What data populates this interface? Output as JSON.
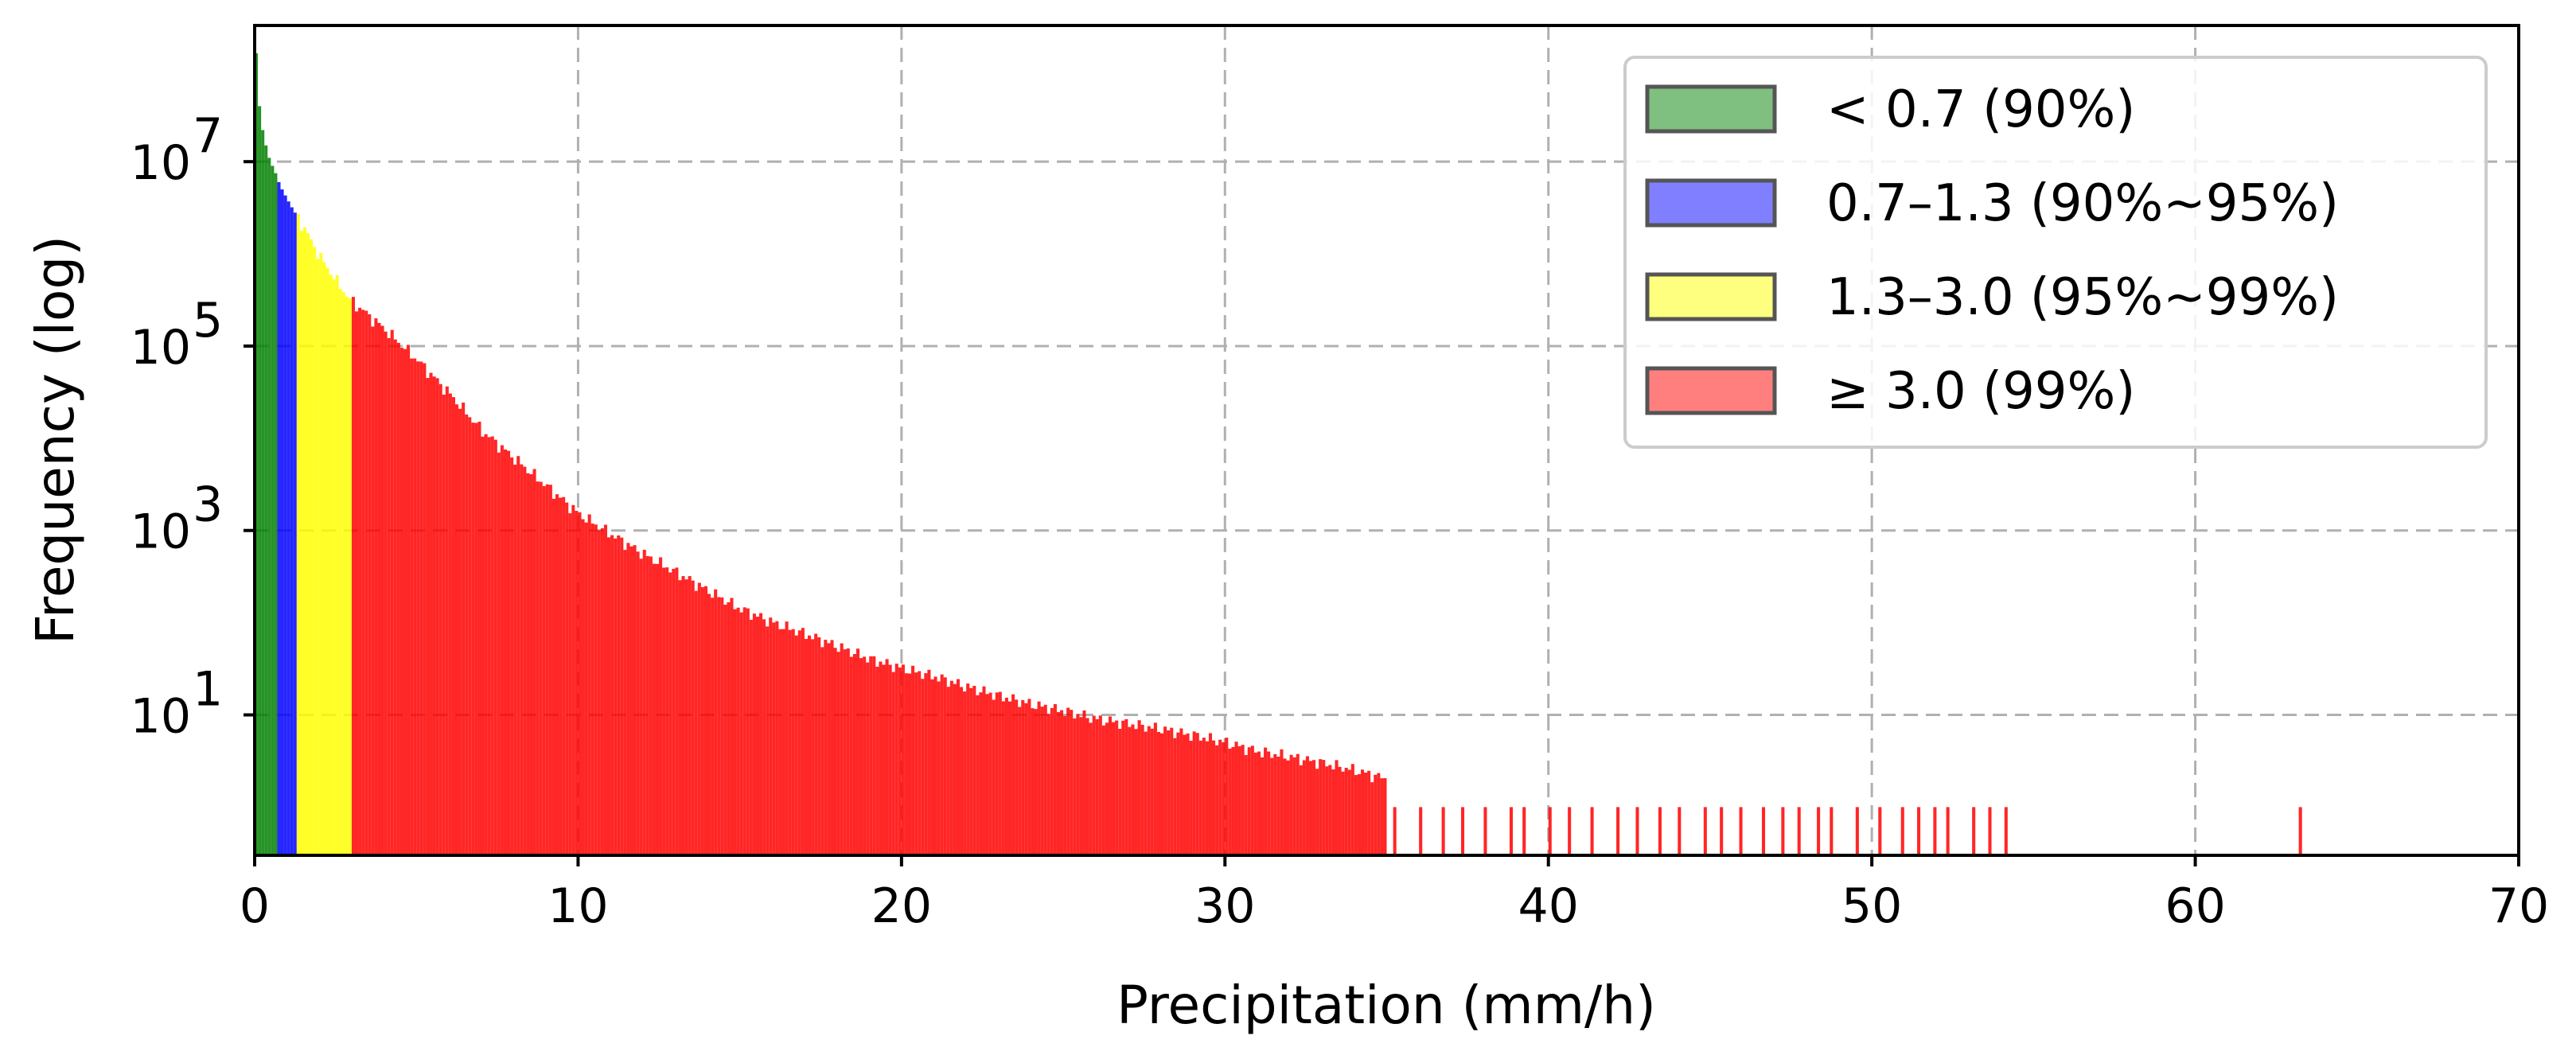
{
  "chart_data": {
    "type": "bar",
    "xlabel": "Precipitation (mm/h)",
    "ylabel": "Frequency (log)",
    "xlim": [
      0,
      70
    ],
    "ylim": [
      0.3,
      300000000
    ],
    "yscale": "log",
    "grid": true,
    "legend_position": "top-right",
    "x_ticks": [
      {
        "value": 0,
        "label": "0"
      },
      {
        "value": 10,
        "label": "10"
      },
      {
        "value": 20,
        "label": "20"
      },
      {
        "value": 30,
        "label": "30"
      },
      {
        "value": 40,
        "label": "40"
      },
      {
        "value": 50,
        "label": "50"
      },
      {
        "value": 60,
        "label": "60"
      },
      {
        "value": 70,
        "label": "70"
      }
    ],
    "y_ticks": [
      {
        "value": 10,
        "base": "10",
        "exp": "1"
      },
      {
        "value": 1000,
        "base": "10",
        "exp": "3"
      },
      {
        "value": 100000,
        "base": "10",
        "exp": "5"
      },
      {
        "value": 10000000,
        "base": "10",
        "exp": "7"
      }
    ],
    "bin_width": 0.1,
    "series": [
      {
        "name": "< 0.7 (90%)",
        "color": "#008000",
        "range": [
          0,
          0.7
        ],
        "x": [
          0.0,
          0.1,
          0.2,
          0.3,
          0.4,
          0.5,
          0.6
        ],
        "values": [
          150000000,
          40000000,
          22000000,
          15000000,
          11000000,
          9000000,
          7500000
        ]
      },
      {
        "name": "0.7–1.3 (90%~95%)",
        "color": "#0000ff",
        "range": [
          0.7,
          1.3
        ],
        "x": [
          0.7,
          0.8,
          0.9,
          1.0,
          1.1,
          1.2
        ],
        "values": [
          6000000,
          5000000,
          4300000,
          3700000,
          3200000,
          2800000
        ]
      },
      {
        "name": "1.3–3.0 (95%~99%)",
        "color": "#ffff00",
        "range": [
          1.3,
          3.0
        ],
        "points": [
          [
            1.3,
            2500000
          ],
          [
            1.6,
            1600000
          ],
          [
            2.0,
            900000
          ],
          [
            2.5,
            500000
          ],
          [
            2.9,
            320000
          ]
        ]
      },
      {
        "name": "≥ 3.0 (99%)",
        "color": "#ff0000",
        "range": [
          3.0,
          70
        ],
        "points": [
          [
            3.0,
            300000
          ],
          [
            4.0,
            150000
          ],
          [
            5.0,
            70000
          ],
          [
            6.0,
            30000
          ],
          [
            7.0,
            12000
          ],
          [
            8.0,
            6000
          ],
          [
            9.0,
            3000
          ],
          [
            10.0,
            1500
          ],
          [
            11.0,
            900
          ],
          [
            12.0,
            550
          ],
          [
            13.0,
            350
          ],
          [
            14.0,
            220
          ],
          [
            15.0,
            140
          ],
          [
            16.0,
            100
          ],
          [
            17.0,
            75
          ],
          [
            18.0,
            55
          ],
          [
            19.0,
            40
          ],
          [
            20.0,
            32
          ],
          [
            21.0,
            26
          ],
          [
            22.0,
            20
          ],
          [
            23.0,
            16
          ],
          [
            24.0,
            13
          ],
          [
            25.0,
            11
          ],
          [
            26.0,
            9
          ],
          [
            27.0,
            8
          ],
          [
            28.0,
            7
          ],
          [
            29.0,
            6
          ],
          [
            30.0,
            5
          ],
          [
            31.0,
            4
          ],
          [
            32.0,
            3.5
          ],
          [
            33.0,
            3
          ],
          [
            34.0,
            2.5
          ],
          [
            35.0,
            2
          ],
          [
            36.0,
            2
          ],
          [
            38.0,
            2
          ],
          [
            40.0,
            1.5
          ],
          [
            42.0,
            1.2
          ],
          [
            44.0,
            1
          ],
          [
            47.0,
            1
          ],
          [
            50.0,
            1
          ],
          [
            54.0,
            1
          ]
        ],
        "sparse_x": [
          35.2,
          36.0,
          36.7,
          37.3,
          38.0,
          38.8,
          39.2,
          40.0,
          40.6,
          41.3,
          42.1,
          42.7,
          43.4,
          44.0,
          44.8,
          45.3,
          45.9,
          46.6,
          47.2,
          47.7,
          48.3,
          48.7,
          49.5,
          50.2,
          50.9,
          51.4,
          51.9,
          52.3,
          53.1,
          53.6,
          54.1,
          63.2
        ]
      }
    ]
  }
}
